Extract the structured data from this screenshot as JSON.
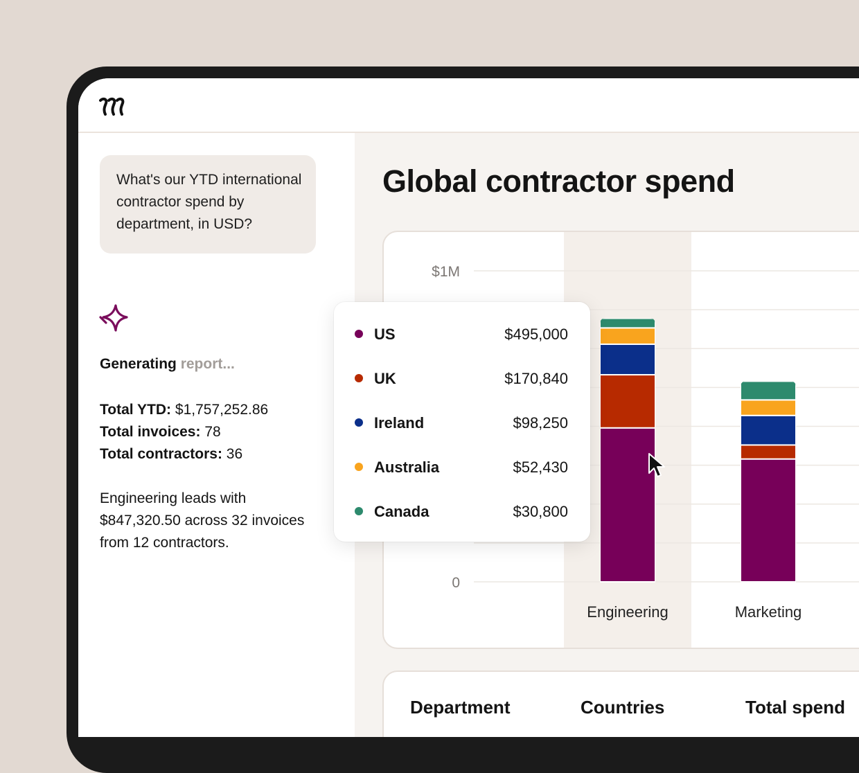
{
  "prompt": "What's our YTD international contractor spend by department, in USD?",
  "status": {
    "strong": "Generating",
    "dim": " report..."
  },
  "stats": [
    {
      "label": "Total YTD:",
      "value": " $1,757,252.86"
    },
    {
      "label": "Total invoices:",
      "value": " 78"
    },
    {
      "label": "Total contractors:",
      "value": " 36"
    }
  ],
  "lead": "Engineering leads with $847,320.50 across 32 invoices from 12 contractors.",
  "title": "Global contractor spend",
  "tooltip": [
    {
      "name": "US",
      "value": "$495,000",
      "color": "#770059"
    },
    {
      "name": "UK",
      "value": "$170,840",
      "color": "#b72a00"
    },
    {
      "name": "Ireland",
      "value": "$98,250",
      "color": "#0b2f8a"
    },
    {
      "name": "Australia",
      "value": "$52,430",
      "color": "#f9a41e"
    },
    {
      "name": "Canada",
      "value": "$30,800",
      "color": "#2d8a6d"
    }
  ],
  "table": {
    "headers": [
      "Department",
      "Countries",
      "Total spend"
    ]
  },
  "icons": {
    "logo": "logo-icon",
    "spark": "sparkle-icon",
    "cursor": "cursor-icon"
  },
  "chart_data": {
    "type": "bar",
    "stacked": true,
    "categories": [
      "Engineering",
      "Marketing"
    ],
    "series": [
      {
        "name": "US",
        "color": "#770059",
        "values": [
          495000,
          395000
        ]
      },
      {
        "name": "UK",
        "color": "#b72a00",
        "values": [
          170840,
          45000
        ]
      },
      {
        "name": "Ireland",
        "color": "#0b2f8a",
        "values": [
          98250,
          95000
        ]
      },
      {
        "name": "Australia",
        "color": "#f9a41e",
        "values": [
          52430,
          50000
        ]
      },
      {
        "name": "Canada",
        "color": "#2d8a6d",
        "values": [
          30800,
          60000
        ]
      }
    ],
    "ylim": [
      0,
      1000000
    ],
    "yticks": [
      {
        "value": 0,
        "label": "0"
      },
      {
        "value": 1000000,
        "label": "$1M"
      }
    ],
    "gridlines": 8,
    "highlighted_category": "Engineering",
    "grid": true
  }
}
